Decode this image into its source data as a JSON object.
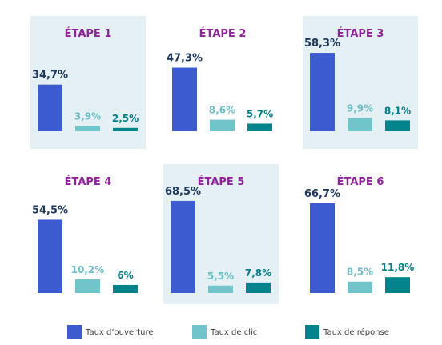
{
  "colors": {
    "open": "#3d5bd1",
    "click": "#72c4cb",
    "reply": "#03838b",
    "title": "#8e2497",
    "label_open": "#213a5c",
    "label_click": "#6cbec6",
    "label_reply": "#037e86",
    "panel_shade": "#e4f0f3"
  },
  "legend": [
    {
      "label": "Taux d’ouverture",
      "color": "#3d5bd1"
    },
    {
      "label": "Taux de clic",
      "color": "#72c4cb"
    },
    {
      "label": "Taux de réponse",
      "color": "#03838b"
    }
  ],
  "chart_data": [
    {
      "type": "bar",
      "title": "ÉTAPE 1",
      "shaded": true,
      "categories": [
        "Taux d’ouverture",
        "Taux de clic",
        "Taux de réponse"
      ],
      "values": [
        34.7,
        3.9,
        2.5
      ],
      "labels": [
        "34,7%",
        "3,9%",
        "2,5%"
      ]
    },
    {
      "type": "bar",
      "title": "ÉTAPE 2",
      "shaded": false,
      "categories": [
        "Taux d’ouverture",
        "Taux de clic",
        "Taux de réponse"
      ],
      "values": [
        47.3,
        8.6,
        5.7
      ],
      "labels": [
        "47,3%",
        "8,6%",
        "5,7%"
      ]
    },
    {
      "type": "bar",
      "title": "ÉTAPE 3",
      "shaded": true,
      "categories": [
        "Taux d’ouverture",
        "Taux de clic",
        "Taux de réponse"
      ],
      "values": [
        58.3,
        9.9,
        8.1
      ],
      "labels": [
        "58,3%",
        "9,9%",
        "8,1%"
      ]
    },
    {
      "type": "bar",
      "title": "ÉTAPE 4",
      "shaded": false,
      "categories": [
        "Taux d’ouverture",
        "Taux de clic",
        "Taux de réponse"
      ],
      "values": [
        54.5,
        10.2,
        6
      ],
      "labels": [
        "54,5%",
        "10,2%",
        "6%"
      ]
    },
    {
      "type": "bar",
      "title": "ÉTAPE 5",
      "shaded": true,
      "categories": [
        "Taux d’ouverture",
        "Taux de clic",
        "Taux de réponse"
      ],
      "values": [
        68.5,
        5.5,
        7.8
      ],
      "labels": [
        "68,5%",
        "5,5%",
        "7,8%"
      ]
    },
    {
      "type": "bar",
      "title": "ÉTAPE 6",
      "shaded": false,
      "categories": [
        "Taux d’ouverture",
        "Taux de clic",
        "Taux de réponse"
      ],
      "values": [
        66.7,
        8.5,
        11.8
      ],
      "labels": [
        "66,7%",
        "8,5%",
        "11,8%"
      ]
    }
  ]
}
